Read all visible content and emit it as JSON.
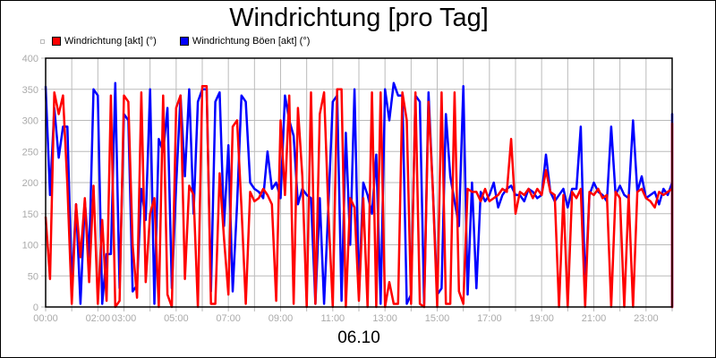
{
  "chart_data": {
    "type": "line",
    "title": "Windrichtung [pro Tag]",
    "xlabel": "06.10",
    "ylabel": "",
    "ylim": [
      0,
      400
    ],
    "xlim_hours": [
      0,
      24
    ],
    "grid": true,
    "legend_position": "top-left",
    "yticks": [
      "0",
      "50",
      "100",
      "150",
      "200",
      "250",
      "300",
      "350",
      "400"
    ],
    "xtick_labels": [
      {
        "h": 0,
        "label": "00:00"
      },
      {
        "h": 2,
        "label": "02:00"
      },
      {
        "h": 3,
        "label": "03:00"
      },
      {
        "h": 5,
        "label": "05:00"
      },
      {
        "h": 7,
        "label": "07:00"
      },
      {
        "h": 9,
        "label": "09:00"
      },
      {
        "h": 11,
        "label": "11:00"
      },
      {
        "h": 13,
        "label": "13:00"
      },
      {
        "h": 15,
        "label": "15:00"
      },
      {
        "h": 17,
        "label": "17:00"
      },
      {
        "h": 19,
        "label": "19:00"
      },
      {
        "h": 21,
        "label": "21:00"
      },
      {
        "h": 23,
        "label": "23:00"
      }
    ],
    "series": [
      {
        "name": "Windrichtung [akt] (°)",
        "color": "#ff0000",
        "step_minutes": 10,
        "values": [
          145,
          45,
          345,
          310,
          340,
          195,
          5,
          165,
          80,
          175,
          40,
          195,
          5,
          140,
          10,
          340,
          0,
          10,
          340,
          330,
          100,
          15,
          345,
          40,
          150,
          175,
          0,
          340,
          20,
          0,
          320,
          340,
          45,
          195,
          180,
          0,
          355,
          355,
          5,
          5,
          215,
          110,
          20,
          290,
          300,
          160,
          5,
          185,
          170,
          175,
          190,
          180,
          165,
          10,
          300,
          180,
          340,
          5,
          320,
          210,
          0,
          345,
          5,
          310,
          345,
          150,
          0,
          350,
          350,
          0,
          175,
          160,
          10,
          175,
          0,
          345,
          0,
          345,
          0,
          40,
          5,
          5,
          345,
          300,
          5,
          345,
          5,
          0,
          330,
          190,
          0,
          345,
          5,
          5,
          345,
          25,
          5,
          190,
          185,
          185,
          170,
          190,
          170,
          175,
          180,
          190,
          185,
          270,
          150,
          185,
          180,
          190,
          175,
          190,
          180,
          220,
          185,
          180,
          0,
          180,
          0,
          185,
          175,
          190,
          0,
          185,
          180,
          190,
          175,
          180,
          0,
          185,
          175,
          0,
          180,
          0,
          185,
          190,
          175,
          170,
          160,
          185,
          180,
          185,
          190,
          0,
          175,
          0,
          295,
          190,
          175
        ]
      },
      {
        "name": "Windrichtung Böen [akt] (°)",
        "color": "#0000ff",
        "step_minutes": 10,
        "values": [
          355,
          180,
          320,
          240,
          290,
          290,
          35,
          165,
          5,
          170,
          80,
          350,
          340,
          5,
          85,
          85,
          360,
          30,
          310,
          300,
          25,
          35,
          190,
          140,
          350,
          5,
          270,
          250,
          320,
          30,
          195,
          340,
          210,
          350,
          150,
          330,
          350,
          350,
          25,
          330,
          345,
          130,
          260,
          25,
          165,
          340,
          330,
          200,
          190,
          185,
          175,
          250,
          190,
          200,
          175,
          340,
          300,
          275,
          165,
          190,
          180,
          175,
          5,
          175,
          5,
          165,
          330,
          340,
          10,
          280,
          100,
          350,
          25,
          200,
          180,
          150,
          245,
          5,
          350,
          300,
          360,
          340,
          340,
          5,
          20,
          340,
          330,
          5,
          345,
          190,
          20,
          30,
          310,
          210,
          170,
          130,
          355,
          20,
          200,
          30,
          185,
          170,
          180,
          200,
          160,
          180,
          190,
          195,
          180,
          180,
          170,
          190,
          185,
          175,
          180,
          245,
          185,
          170,
          180,
          190,
          160,
          190,
          190,
          290,
          30,
          180,
          200,
          185,
          180,
          170,
          290,
          180,
          195,
          180,
          175,
          300,
          185,
          210,
          175,
          180,
          185,
          165,
          190,
          180,
          200,
          0,
          210,
          20,
          180,
          310,
          185,
          180
        ]
      }
    ]
  },
  "title": "Windrichtung [pro Tag]",
  "date_label": "06.10",
  "legend": [
    {
      "label": "Windrichtung [akt] (°)",
      "color": "#ff0000"
    },
    {
      "label": "Windrichtung Böen [akt] (°)",
      "color": "#0000ff"
    }
  ]
}
